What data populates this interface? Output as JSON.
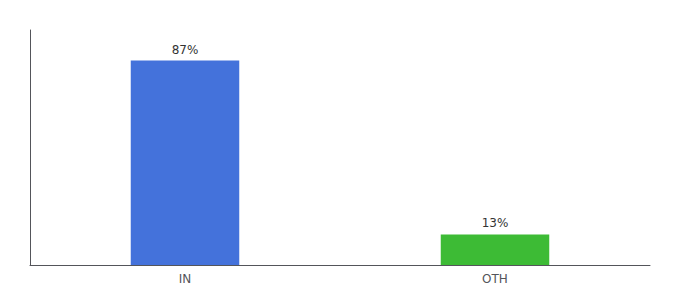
{
  "chart_data": {
    "type": "bar",
    "categories": [
      "IN",
      "OTH"
    ],
    "values": [
      87,
      13
    ],
    "value_labels": [
      "87%",
      "13%"
    ],
    "colors": [
      "#4472db",
      "#3dbb35"
    ],
    "ylim": [
      0,
      100
    ],
    "grid": false,
    "data_labels": true,
    "tick_labels": "x"
  }
}
